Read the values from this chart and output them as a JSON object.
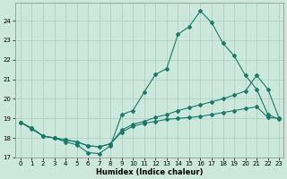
{
  "xlabel": "Humidex (Indice chaleur)",
  "bg_color": "#cce8dc",
  "line_color": "#1a7a6a",
  "grid_color": "#aaccbb",
  "xlim_min": -0.5,
  "xlim_max": 23.4,
  "ylim_min": 17.0,
  "ylim_max": 24.9,
  "xticks": [
    0,
    1,
    2,
    3,
    4,
    5,
    6,
    7,
    8,
    9,
    10,
    11,
    12,
    13,
    14,
    15,
    16,
    17,
    18,
    19,
    20,
    21,
    22,
    23
  ],
  "yticks": [
    17,
    18,
    19,
    20,
    21,
    22,
    23,
    24
  ],
  "line1_x": [
    0,
    1,
    2,
    3,
    4,
    5,
    6,
    7,
    8,
    9,
    10,
    11,
    12,
    13,
    14,
    15,
    16,
    17,
    18,
    19,
    20,
    21,
    22,
    23
  ],
  "line1_y": [
    18.8,
    18.5,
    18.1,
    18.0,
    17.8,
    17.65,
    17.25,
    17.2,
    17.6,
    19.2,
    19.4,
    20.35,
    21.25,
    21.55,
    23.3,
    23.7,
    24.5,
    23.9,
    22.85,
    22.2,
    21.2,
    20.5,
    19.2,
    18.95
  ],
  "line2_x": [
    0,
    1,
    2,
    3,
    4,
    5,
    6,
    7,
    8,
    9,
    10,
    11,
    12,
    13,
    14,
    15,
    16,
    17,
    18,
    19,
    20,
    21,
    22,
    23
  ],
  "line2_y": [
    18.8,
    18.5,
    18.1,
    18.0,
    17.9,
    17.8,
    17.6,
    17.55,
    17.7,
    18.4,
    18.7,
    18.85,
    19.05,
    19.2,
    19.4,
    19.55,
    19.7,
    19.85,
    20.0,
    20.2,
    20.4,
    21.2,
    20.5,
    19.0
  ],
  "line3_x": [
    0,
    1,
    2,
    3,
    4,
    5,
    6,
    7,
    8,
    9,
    10,
    11,
    12,
    13,
    14,
    15,
    16,
    17,
    18,
    19,
    20,
    21,
    22,
    23
  ],
  "line3_y": [
    18.8,
    18.45,
    18.1,
    18.0,
    17.9,
    17.8,
    17.6,
    17.55,
    17.7,
    18.3,
    18.6,
    18.75,
    18.85,
    18.95,
    19.0,
    19.05,
    19.1,
    19.2,
    19.3,
    19.4,
    19.5,
    19.6,
    19.05,
    19.0
  ]
}
